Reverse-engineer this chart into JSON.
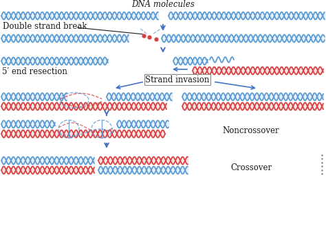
{
  "bg_color": "#ffffff",
  "blue": "#5b9bd5",
  "red": "#d94040",
  "arrow_color": "#4472c4",
  "text_color": "#1a1a1a",
  "label_dna": "DNA molecules",
  "label_dsb": "Double strand break",
  "label_5end": "5′ end resection",
  "label_si": "Strand invasion",
  "label_nc": "Noncrossover",
  "label_co": "Crossover",
  "font_size": 8.5
}
